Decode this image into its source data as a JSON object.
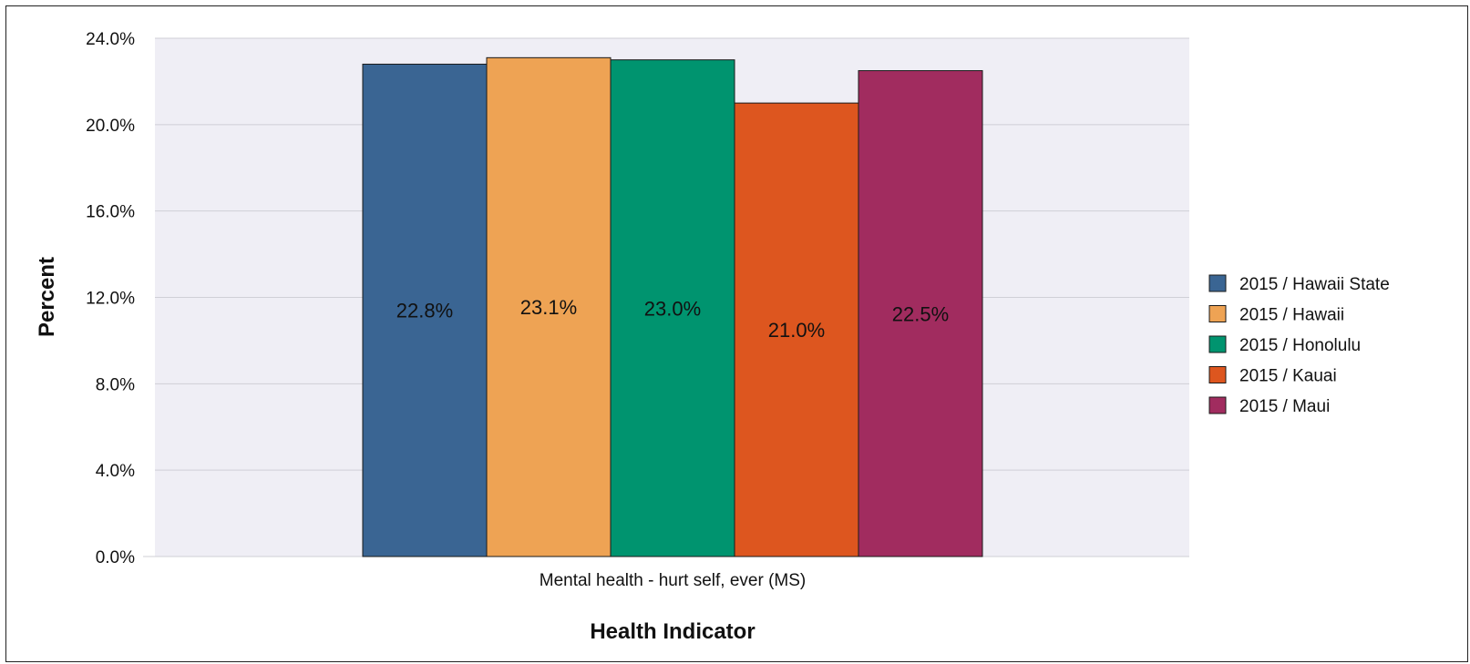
{
  "chart_data": {
    "type": "bar",
    "categories": [
      "Mental health - hurt self, ever (MS)"
    ],
    "series": [
      {
        "name": "2015 / Hawaii State",
        "values": [
          22.8
        ],
        "label": "22.8%",
        "color": "#3a6593"
      },
      {
        "name": "2015 / Hawaii",
        "values": [
          23.1
        ],
        "label": "23.1%",
        "color": "#eea354"
      },
      {
        "name": "2015 / Honolulu",
        "values": [
          23.0
        ],
        "label": "23.0%",
        "color": "#00946f"
      },
      {
        "name": "2015 / Kauai",
        "values": [
          21.0
        ],
        "label": "21.0%",
        "color": "#dd561f"
      },
      {
        "name": "2015 / Maui",
        "values": [
          22.5
        ],
        "label": "22.5%",
        "color": "#a12c5f"
      }
    ],
    "xlabel": "Health Indicator",
    "ylabel": "Percent",
    "ylim": [
      0,
      24
    ],
    "yticks": [
      0,
      4,
      8,
      12,
      16,
      20,
      24
    ],
    "ytick_labels": [
      "0.0%",
      "4.0%",
      "8.0%",
      "12.0%",
      "16.0%",
      "20.0%",
      "24.0%"
    ],
    "grid": true,
    "legend_position": "right",
    "plot_background": "#efeef5"
  }
}
